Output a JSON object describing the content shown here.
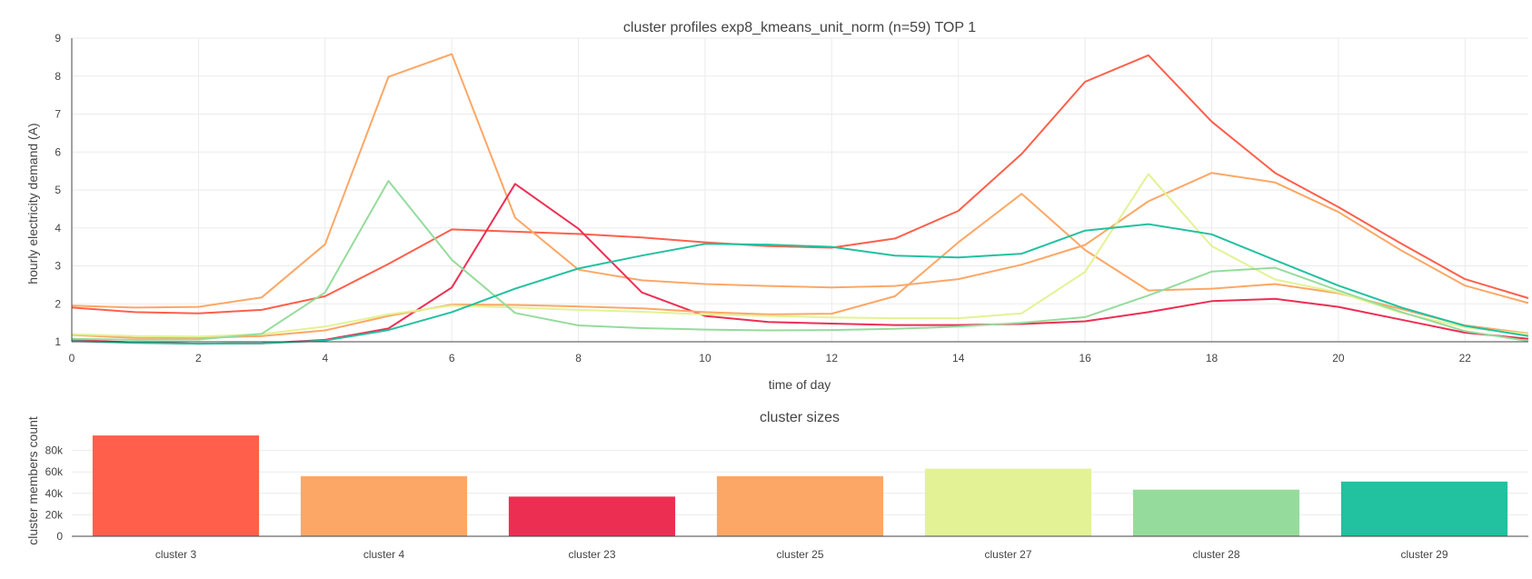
{
  "chart_data": [
    {
      "type": "line",
      "title": "cluster profiles exp8_kmeans_unit_norm (n=59) TOP 1",
      "xlabel": "time of day",
      "ylabel": "hourly electricity demand (A)",
      "xlim": [
        0,
        23
      ],
      "ylim": [
        1,
        9
      ],
      "x_ticks": [
        "0",
        "2",
        "4",
        "6",
        "8",
        "10",
        "12",
        "14",
        "16",
        "18",
        "20",
        "22"
      ],
      "y_ticks": [
        "1",
        "2",
        "3",
        "4",
        "5",
        "6",
        "7",
        "8",
        "9"
      ],
      "grid": true,
      "x": [
        0,
        1,
        2,
        3,
        4,
        5,
        6,
        7,
        8,
        9,
        10,
        11,
        12,
        13,
        14,
        15,
        16,
        17,
        18,
        19,
        20,
        21,
        22,
        23
      ],
      "series": [
        {
          "name": "cluster 3",
          "color": "#ff5f4b",
          "values": [
            1.9,
            1.78,
            1.75,
            1.84,
            2.2,
            3.05,
            3.96,
            3.9,
            3.84,
            3.75,
            3.62,
            3.52,
            3.48,
            3.72,
            4.45,
            5.95,
            7.85,
            8.55,
            6.8,
            5.45,
            4.55,
            3.58,
            2.65,
            2.15
          ]
        },
        {
          "name": "cluster 4",
          "color": "#fda766",
          "values": [
            1.95,
            1.9,
            1.92,
            2.17,
            3.57,
            7.98,
            8.58,
            4.27,
            2.9,
            2.62,
            2.52,
            2.47,
            2.43,
            2.47,
            2.65,
            3.03,
            3.55,
            4.7,
            5.45,
            5.2,
            4.42,
            3.4,
            2.48,
            2.02
          ]
        },
        {
          "name": "cluster 23",
          "color": "#ed2e53",
          "values": [
            1.05,
            0.98,
            0.95,
            0.96,
            1.05,
            1.35,
            2.43,
            5.16,
            3.98,
            2.3,
            1.68,
            1.52,
            1.48,
            1.44,
            1.44,
            1.47,
            1.54,
            1.78,
            2.07,
            2.13,
            1.92,
            1.58,
            1.24,
            1.08
          ]
        },
        {
          "name": "cluster 25",
          "color": "#fda766",
          "values": [
            1.18,
            1.1,
            1.1,
            1.15,
            1.3,
            1.68,
            1.98,
            1.97,
            1.93,
            1.88,
            1.78,
            1.72,
            1.74,
            2.2,
            3.62,
            4.9,
            3.42,
            2.35,
            2.4,
            2.52,
            2.28,
            1.86,
            1.43,
            1.22
          ]
        },
        {
          "name": "cluster 27",
          "color": "#e3f294",
          "values": [
            1.2,
            1.15,
            1.14,
            1.2,
            1.4,
            1.72,
            1.95,
            1.9,
            1.84,
            1.79,
            1.72,
            1.68,
            1.64,
            1.62,
            1.62,
            1.75,
            2.84,
            5.42,
            3.52,
            2.64,
            2.3,
            1.76,
            1.38,
            1.2
          ]
        },
        {
          "name": "cluster 28",
          "color": "#95dc9c",
          "values": [
            1.08,
            1.05,
            1.06,
            1.21,
            2.3,
            5.24,
            3.16,
            1.76,
            1.43,
            1.36,
            1.32,
            1.3,
            1.31,
            1.34,
            1.4,
            1.5,
            1.65,
            2.22,
            2.85,
            2.95,
            2.35,
            1.78,
            1.28,
            1.02
          ]
        },
        {
          "name": "cluster 29",
          "color": "#22c1a0",
          "values": [
            1.02,
            0.97,
            0.95,
            0.96,
            1.03,
            1.31,
            1.78,
            2.4,
            2.93,
            3.27,
            3.58,
            3.56,
            3.5,
            3.27,
            3.22,
            3.32,
            3.93,
            4.1,
            3.83,
            3.15,
            2.48,
            1.9,
            1.42,
            1.15
          ]
        }
      ]
    },
    {
      "type": "bar",
      "title": "cluster sizes",
      "xlabel": "",
      "ylabel": "cluster members count",
      "ylim": [
        0,
        100000
      ],
      "y_ticks": [
        {
          "value": 0,
          "label": "0"
        },
        {
          "value": 20000,
          "label": "20k"
        },
        {
          "value": 40000,
          "label": "40k"
        },
        {
          "value": 60000,
          "label": "60k"
        },
        {
          "value": 80000,
          "label": "80k"
        }
      ],
      "grid": true,
      "categories": [
        "cluster 3",
        "cluster 4",
        "cluster 23",
        "cluster 25",
        "cluster 27",
        "cluster 28",
        "cluster 29"
      ],
      "values": [
        94000,
        56000,
        37000,
        56000,
        63000,
        43500,
        51000
      ],
      "colors": [
        "#ff5f4b",
        "#fda766",
        "#ed2e53",
        "#fda766",
        "#e3f294",
        "#95dc9c",
        "#22c1a0"
      ]
    }
  ]
}
